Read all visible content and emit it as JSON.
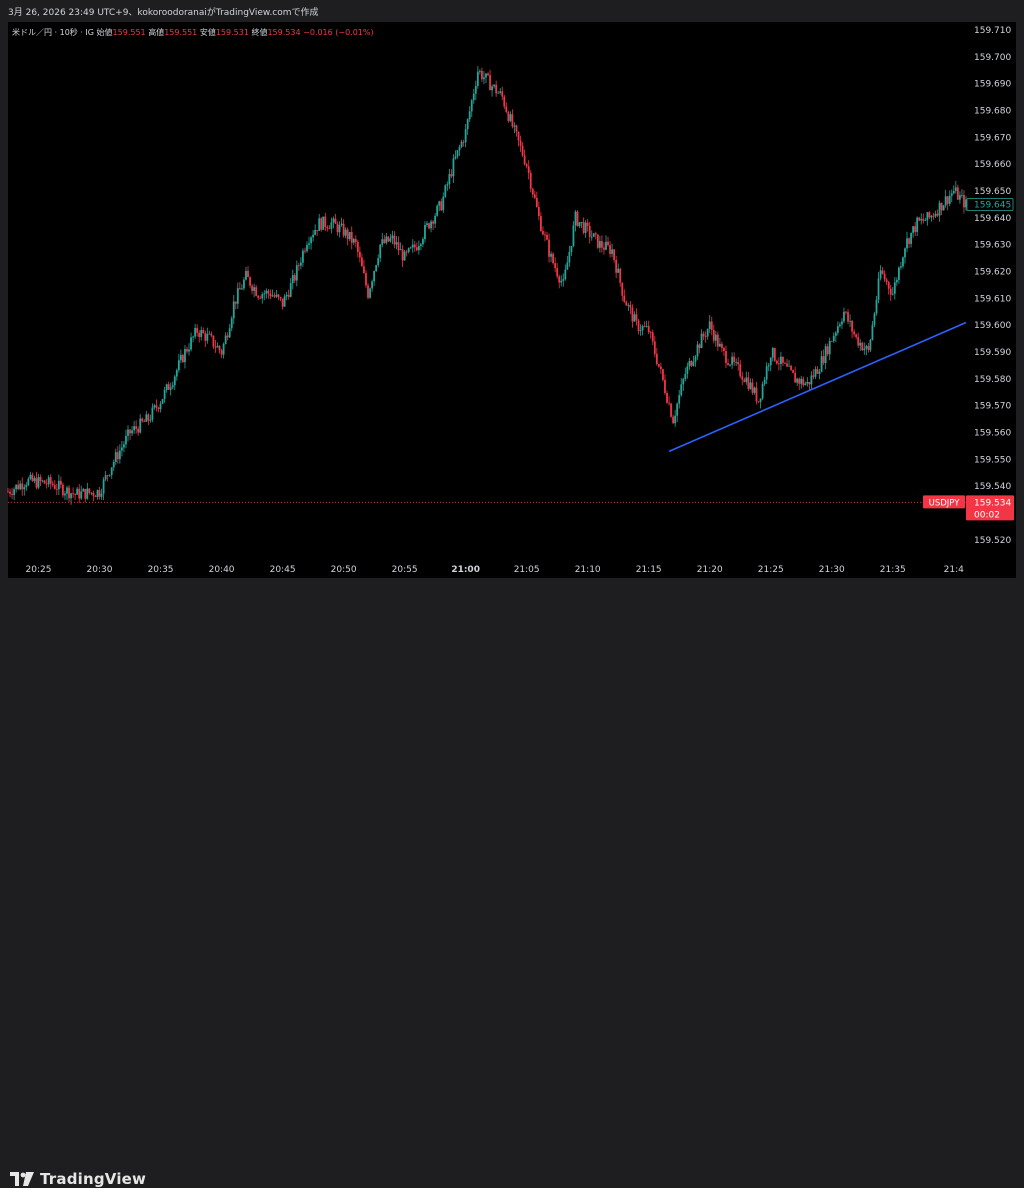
{
  "caption": "3月 26, 2026 23:49 UTC+9、kokoroodoranaiがTradingView.comで作成",
  "legend": {
    "symbol": "米ドル／円 · 10秒 · IG",
    "open_label": "始値",
    "open": "159.551",
    "high_label": "高値",
    "high": "159.551",
    "low_label": "安値",
    "low": "159.531",
    "close_label": "終値",
    "close": "159.534",
    "change": "−0.016 (−0.01%)"
  },
  "brand": {
    "name": "TradingView",
    "icon": "tradingview-logo-icon"
  },
  "colors": {
    "up": "#26a69a",
    "down": "#f23645",
    "trendline": "#2962ff",
    "background": "#000000",
    "axis_text": "#d1d4dc"
  },
  "price_tags": {
    "current": "159.645",
    "symbol_tag": "USDJPY",
    "last": "159.534",
    "countdown": "00:02"
  },
  "chart_data": {
    "type": "candlestick",
    "interval": "10s",
    "x_tick_labels": [
      "20:25",
      "20:30",
      "20:35",
      "20:40",
      "20:45",
      "20:50",
      "20:55",
      "21:00",
      "21:05",
      "21:10",
      "21:15",
      "21:20",
      "21:25",
      "21:30",
      "21:35",
      "21:4"
    ],
    "y_tick_labels": [
      "159.710",
      "159.700",
      "159.690",
      "159.680",
      "159.670",
      "159.660",
      "159.650",
      "159.640",
      "159.630",
      "159.620",
      "159.610",
      "159.600",
      "159.590",
      "159.580",
      "159.570",
      "159.560",
      "159.550",
      "159.540",
      "159.520"
    ],
    "ylim": [
      159.514,
      159.713
    ],
    "x_range": [
      "20:22:30",
      "21:41:00"
    ],
    "price_path": [
      [
        "20:22:30",
        159.538
      ],
      [
        "20:24:00",
        159.542
      ],
      [
        "20:26:00",
        159.541
      ],
      [
        "20:28:00",
        159.537
      ],
      [
        "20:30:00",
        159.538
      ],
      [
        "20:31:00",
        159.548
      ],
      [
        "20:32:30",
        159.56
      ],
      [
        "20:34:00",
        159.565
      ],
      [
        "20:35:00",
        159.572
      ],
      [
        "20:36:00",
        159.58
      ],
      [
        "20:37:00",
        159.59
      ],
      [
        "20:38:00",
        159.598
      ],
      [
        "20:39:00",
        159.595
      ],
      [
        "20:40:00",
        159.59
      ],
      [
        "20:40:30",
        159.598
      ],
      [
        "20:41:00",
        159.608
      ],
      [
        "20:42:00",
        159.618
      ],
      [
        "20:43:00",
        159.612
      ],
      [
        "20:44:00",
        159.612
      ],
      [
        "20:45:00",
        159.608
      ],
      [
        "20:46:00",
        159.618
      ],
      [
        "20:47:00",
        159.632
      ],
      [
        "20:48:00",
        159.638
      ],
      [
        "20:49:00",
        159.638
      ],
      [
        "20:50:00",
        159.635
      ],
      [
        "20:51:00",
        159.63
      ],
      [
        "20:52:00",
        159.612
      ],
      [
        "20:53:00",
        159.63
      ],
      [
        "20:54:00",
        159.632
      ],
      [
        "20:55:00",
        159.625
      ],
      [
        "20:56:00",
        159.63
      ],
      [
        "20:57:00",
        159.638
      ],
      [
        "20:58:00",
        159.645
      ],
      [
        "20:59:00",
        159.66
      ],
      [
        "21:00:00",
        159.672
      ],
      [
        "21:01:00",
        159.695
      ],
      [
        "21:02:00",
        159.69
      ],
      [
        "21:03:00",
        159.685
      ],
      [
        "21:04:00",
        159.672
      ],
      [
        "21:05:00",
        159.66
      ],
      [
        "21:06:00",
        159.64
      ],
      [
        "21:07:00",
        159.625
      ],
      [
        "21:08:00",
        159.615
      ],
      [
        "21:09:00",
        159.64
      ],
      [
        "21:10:00",
        159.635
      ],
      [
        "21:11:00",
        159.63
      ],
      [
        "21:12:00",
        159.628
      ],
      [
        "21:13:00",
        159.61
      ],
      [
        "21:14:00",
        159.6
      ],
      [
        "21:15:00",
        159.598
      ],
      [
        "21:16:00",
        159.582
      ],
      [
        "21:17:00",
        159.565
      ],
      [
        "21:18:00",
        159.582
      ],
      [
        "21:19:00",
        159.592
      ],
      [
        "21:20:00",
        159.6
      ],
      [
        "21:21:00",
        159.59
      ],
      [
        "21:22:00",
        159.585
      ],
      [
        "21:23:00",
        159.58
      ],
      [
        "21:24:00",
        159.572
      ],
      [
        "21:25:00",
        159.59
      ],
      [
        "21:26:00",
        159.585
      ],
      [
        "21:27:00",
        159.58
      ],
      [
        "21:28:00",
        159.578
      ],
      [
        "21:29:00",
        159.585
      ],
      [
        "21:30:00",
        159.595
      ],
      [
        "21:31:00",
        159.605
      ],
      [
        "21:32:00",
        159.595
      ],
      [
        "21:33:00",
        159.59
      ],
      [
        "21:34:00",
        159.62
      ],
      [
        "21:35:00",
        159.612
      ],
      [
        "21:36:00",
        159.63
      ],
      [
        "21:37:00",
        159.638
      ],
      [
        "21:38:00",
        159.64
      ],
      [
        "21:39:00",
        159.645
      ],
      [
        "21:40:00",
        159.65
      ],
      [
        "21:41:00",
        159.645
      ]
    ],
    "trendline": {
      "start": [
        "21:16:40",
        159.553
      ],
      "end": [
        "21:41:00",
        159.601
      ]
    },
    "last_price_line": 159.534,
    "grid": false
  }
}
